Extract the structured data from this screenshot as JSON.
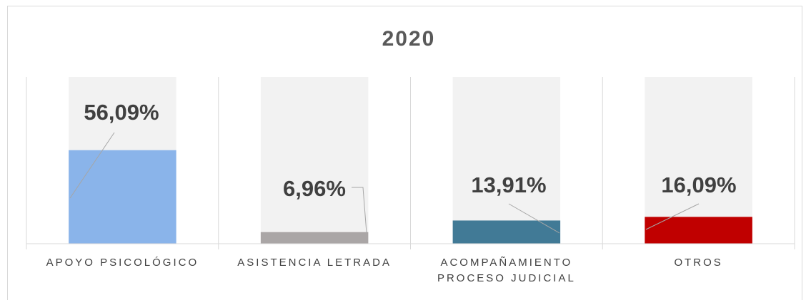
{
  "chart_data": {
    "type": "bar",
    "title": "2020",
    "categories": [
      "APOYO PSICOLÓGICO",
      "ASISTENCIA LETRADA",
      "ACOMPAÑAMIENTO PROCESO JUDICIAL",
      "OTROS"
    ],
    "values": [
      56.09,
      6.96,
      13.91,
      16.09
    ],
    "value_labels": [
      "56,09%",
      "6,96%",
      "13,91%",
      "16,09%"
    ],
    "colors": [
      "#8ab4ea",
      "#aaa6a6",
      "#417a96",
      "#c00000"
    ],
    "ylim": [
      0,
      100
    ]
  }
}
